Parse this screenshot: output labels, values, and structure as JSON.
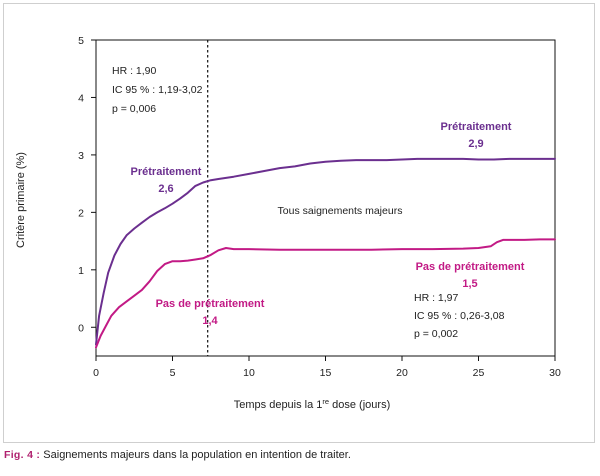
{
  "chart_data": {
    "type": "line",
    "xlabel": "Temps depuis la 1re dose (jours)",
    "ylabel": "Critère primaire (%)",
    "xlim": [
      0,
      30
    ],
    "ylim": [
      -0.5,
      5
    ],
    "x_ticks": [
      "0",
      "5",
      "10",
      "15",
      "20",
      "25",
      "30"
    ],
    "y_ticks": [
      "0",
      "1",
      "2",
      "3",
      "4",
      "5"
    ],
    "vline_x": 7.3,
    "annotations": {
      "top_stats": [
        "HR : 1,90",
        "IC 95 % : 1,19-3,02",
        "p = 0,006"
      ],
      "bottom_stats": [
        "HR : 1,97",
        "IC 95 % : 0,26-3,08",
        "p = 0,002"
      ],
      "center_text": "Tous saignements majeurs",
      "purple_left": [
        "Prétraitement",
        "2,6"
      ],
      "purple_right": [
        "Prétraitement",
        "2,9"
      ],
      "magenta_left": [
        "Pas de prétraitement",
        "1,4"
      ],
      "magenta_right": [
        "Pas de prétraitement",
        "1,5"
      ]
    },
    "series": [
      {
        "color": "#6b2f8f",
        "x": [
          0,
          0.2,
          0.5,
          0.8,
          1.2,
          1.6,
          2.0,
          2.5,
          3.0,
          3.5,
          4.0,
          4.5,
          5.0,
          5.5,
          6.0,
          6.5,
          7.0,
          7.5,
          8.0,
          9.0,
          10.0,
          11.0,
          12.0,
          13.0,
          14.0,
          15.0,
          16.0,
          17.0,
          18.0,
          19.0,
          20.0,
          21.0,
          22.0,
          23.0,
          24.0,
          25.0,
          26.0,
          27.0,
          28.0,
          29.0,
          30.0
        ],
        "values": [
          -0.3,
          0.2,
          0.6,
          0.95,
          1.25,
          1.45,
          1.6,
          1.72,
          1.82,
          1.92,
          2.0,
          2.07,
          2.15,
          2.24,
          2.34,
          2.46,
          2.52,
          2.56,
          2.58,
          2.62,
          2.67,
          2.72,
          2.77,
          2.8,
          2.85,
          2.88,
          2.9,
          2.91,
          2.91,
          2.91,
          2.92,
          2.93,
          2.93,
          2.93,
          2.93,
          2.92,
          2.92,
          2.93,
          2.93,
          2.93,
          2.93
        ]
      },
      {
        "color": "#c21a85",
        "x": [
          0,
          0.3,
          0.7,
          1.0,
          1.5,
          2.0,
          2.5,
          3.0,
          3.5,
          4.0,
          4.5,
          5.0,
          5.5,
          6.0,
          6.5,
          7.0,
          7.5,
          8.0,
          8.5,
          9.0,
          10.0,
          12.0,
          14.0,
          16.0,
          18.0,
          20.0,
          22.0,
          24.0,
          25.0,
          25.8,
          26.2,
          26.6,
          27.0,
          28.0,
          29.0,
          30.0
        ],
        "values": [
          -0.35,
          -0.15,
          0.05,
          0.2,
          0.35,
          0.45,
          0.55,
          0.65,
          0.8,
          0.98,
          1.1,
          1.15,
          1.15,
          1.16,
          1.18,
          1.2,
          1.26,
          1.34,
          1.38,
          1.36,
          1.36,
          1.35,
          1.35,
          1.35,
          1.35,
          1.36,
          1.36,
          1.37,
          1.38,
          1.41,
          1.48,
          1.52,
          1.52,
          1.52,
          1.53,
          1.53
        ]
      }
    ]
  },
  "caption": {
    "label": "Fig. 4 :",
    "text": " Saignements majeurs dans la population en intention de traiter."
  }
}
